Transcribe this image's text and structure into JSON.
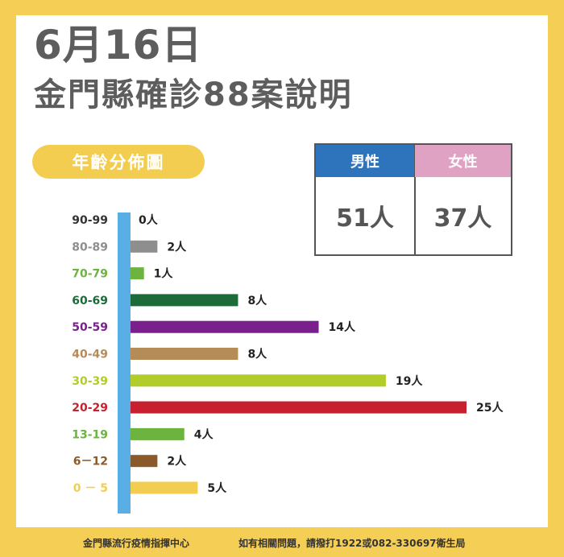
{
  "header": {
    "date": "6月16日",
    "title": "金門縣確診88案說明"
  },
  "section_label": "年齡分佈圖",
  "gender": {
    "male_label": "男性",
    "male_value": "51人",
    "female_label": "女性",
    "female_value": "37人",
    "colors": {
      "male": "#2e74bd",
      "female": "#e0a2c3"
    }
  },
  "chart_data": {
    "type": "bar",
    "orientation": "horizontal",
    "categories": [
      "90-99",
      "80-89",
      "70-79",
      "60-69",
      "50-59",
      "40-49",
      "30-39",
      "20-29",
      "13-19",
      "6－12",
      "0 － 5"
    ],
    "values": [
      0,
      2,
      1,
      8,
      14,
      8,
      19,
      25,
      4,
      2,
      5
    ],
    "value_labels": [
      "0人",
      "2人",
      "1人",
      "8人",
      "14人",
      "8人",
      "19人",
      "25人",
      "4人",
      "2人",
      "5人"
    ],
    "colors": [
      "#333333",
      "#8e8e8e",
      "#6cb33f",
      "#1e6b3a",
      "#7a1f8c",
      "#b58b57",
      "#b2cd2a",
      "#c8202e",
      "#6cb33f",
      "#8b5a2b",
      "#f3cd4f"
    ],
    "xlim": [
      0,
      25
    ],
    "grid": false,
    "axis_color": "#5aaee6"
  },
  "footer": {
    "left": "金門縣流行疫情指揮中心",
    "right": "如有相關問題，請撥打1922或082-330697衛生局"
  }
}
